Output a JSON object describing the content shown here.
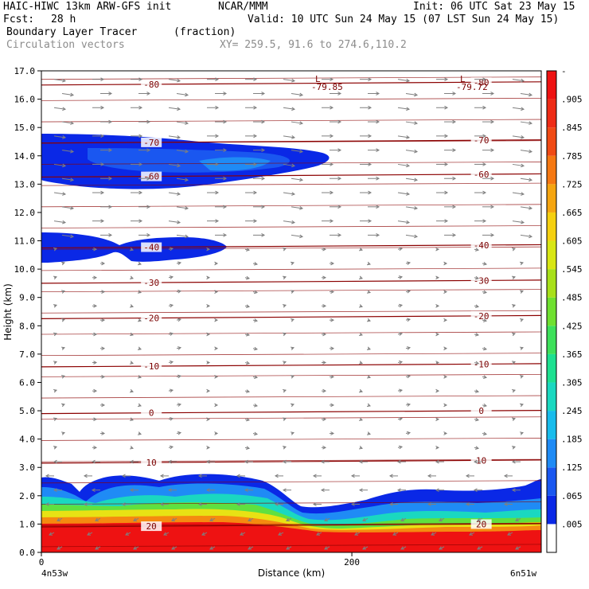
{
  "header": {
    "model": "HAIC-HIWC 13km ARW-GFS init",
    "center": "NCAR/MMM",
    "init": "Init: 06 UTC Sat 23 May 15",
    "fcst_label": "Fcst:",
    "fcst_value": "28 h",
    "valid": "Valid: 10 UTC Sun 24 May 15 (07 LST Sun 24 May 15)",
    "field": "Boundary Layer Tracer",
    "units": "(fraction)",
    "vectors": "Circulation vectors",
    "xy": "XY= 259.5, 91.6 to 274.6,110.2"
  },
  "colors": {
    "contour": "#8b0000",
    "vector": "#7f7f7f",
    "colorbar": [
      "#ffffff",
      "#0a28e6",
      "#1a57f0",
      "#1f8bf5",
      "#18bcec",
      "#1ad8c0",
      "#1de090",
      "#3de05a",
      "#6fe030",
      "#a8e01a",
      "#d8e614",
      "#f5d010",
      "#f5a510",
      "#f57812",
      "#f04a14",
      "#ee2c16",
      "#ee1212"
    ]
  },
  "labels": {
    "low1": "L",
    "low1_value": "-79.85",
    "low2": "L",
    "low2_value": "-79.72"
  },
  "chart_data": {
    "type": "heatmap",
    "title": "Boundary Layer Tracer",
    "units": "(fraction)",
    "xlabel": "Distance (km)",
    "ylabel": "Height (km)",
    "xlim": [
      0,
      322
    ],
    "ylim": [
      0.0,
      17.0
    ],
    "x_ticks": [
      "0",
      "200"
    ],
    "x_endpoints": [
      "4n53w",
      "6n51w"
    ],
    "y_ticks": [
      "0.0",
      "1.0",
      "2.0",
      "3.0",
      "4.0",
      "5.0",
      "6.0",
      "7.0",
      "8.0",
      "9.0",
      "10.0",
      "11.0",
      "12.0",
      "13.0",
      "14.0",
      "15.0",
      "16.0",
      "17.0"
    ],
    "colorbar_labels": [
      ".005",
      ".065",
      ".125",
      ".185",
      ".245",
      ".305",
      ".365",
      ".425",
      ".485",
      ".545",
      ".605",
      ".665",
      ".725",
      ".785",
      ".845",
      ".905",
      "-"
    ],
    "temperature_contours": [
      {
        "value": 20,
        "label": "20",
        "height_km": 0.9
      },
      {
        "value": 10,
        "label": "10",
        "height_km": 3.15
      },
      {
        "value": 0,
        "label": "0",
        "height_km": 4.9
      },
      {
        "value": -10,
        "label": "-10",
        "height_km": 6.55
      },
      {
        "value": -20,
        "label": "-20",
        "height_km": 8.25
      },
      {
        "value": -30,
        "label": "-30",
        "height_km": 9.5
      },
      {
        "value": -40,
        "label": "-40",
        "height_km": 10.75
      },
      {
        "value": -60,
        "label": "-60",
        "height_km": 13.25
      },
      {
        "value": -70,
        "label": "-70",
        "height_km": 14.45
      },
      {
        "value": -80,
        "label": "-80",
        "height_km": 16.5
      }
    ],
    "lows": [
      {
        "label": "L",
        "value": -79.85,
        "x_km": 176,
        "height_km": 16.7
      },
      {
        "label": "L",
        "value": -79.72,
        "x_km": 272,
        "height_km": 16.7
      }
    ],
    "tracer_regions": [
      {
        "name": "boundary layer",
        "base_km": 0.0,
        "top_km_range": [
          1.6,
          2.7
        ]
      },
      {
        "name": "upper layer 1",
        "height_km_range": [
          12.8,
          14.7
        ],
        "x_km_range": [
          0,
          186
        ]
      },
      {
        "name": "upper layer 2",
        "height_km_range": [
          10.2,
          11.3
        ],
        "x_km_range": [
          0,
          118
        ]
      }
    ]
  }
}
